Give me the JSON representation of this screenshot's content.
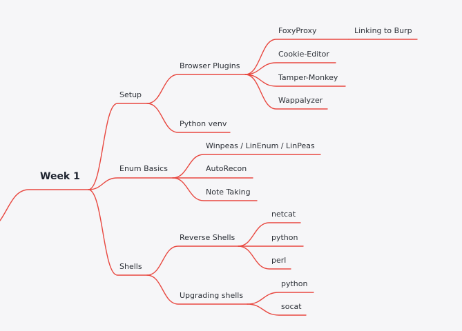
{
  "mindmap": {
    "root": "Week 1",
    "branches": [
      {
        "label": "Setup",
        "children": [
          {
            "label": "Browser Plugins",
            "children": [
              {
                "label": "FoxyProxy",
                "children": [
                  {
                    "label": "Linking to Burp"
                  }
                ]
              },
              {
                "label": "Cookie-Editor"
              },
              {
                "label": "Tamper-Monkey"
              },
              {
                "label": "Wappalyzer"
              }
            ]
          },
          {
            "label": "Python venv"
          }
        ]
      },
      {
        "label": "Enum Basics",
        "children": [
          {
            "label": "Winpeas / LinEnum / LinPeas"
          },
          {
            "label": "AutoRecon"
          },
          {
            "label": "Note Taking"
          }
        ]
      },
      {
        "label": "Shells",
        "children": [
          {
            "label": "Reverse Shells",
            "children": [
              {
                "label": "netcat"
              },
              {
                "label": "python"
              },
              {
                "label": "perl"
              }
            ]
          },
          {
            "label": "Upgrading shells",
            "children": [
              {
                "label": "python"
              },
              {
                "label": "socat"
              }
            ]
          }
        ]
      }
    ]
  },
  "colors": {
    "branch": "#e8473f",
    "background": "#f6f6f8",
    "text": "#2b2f36"
  }
}
